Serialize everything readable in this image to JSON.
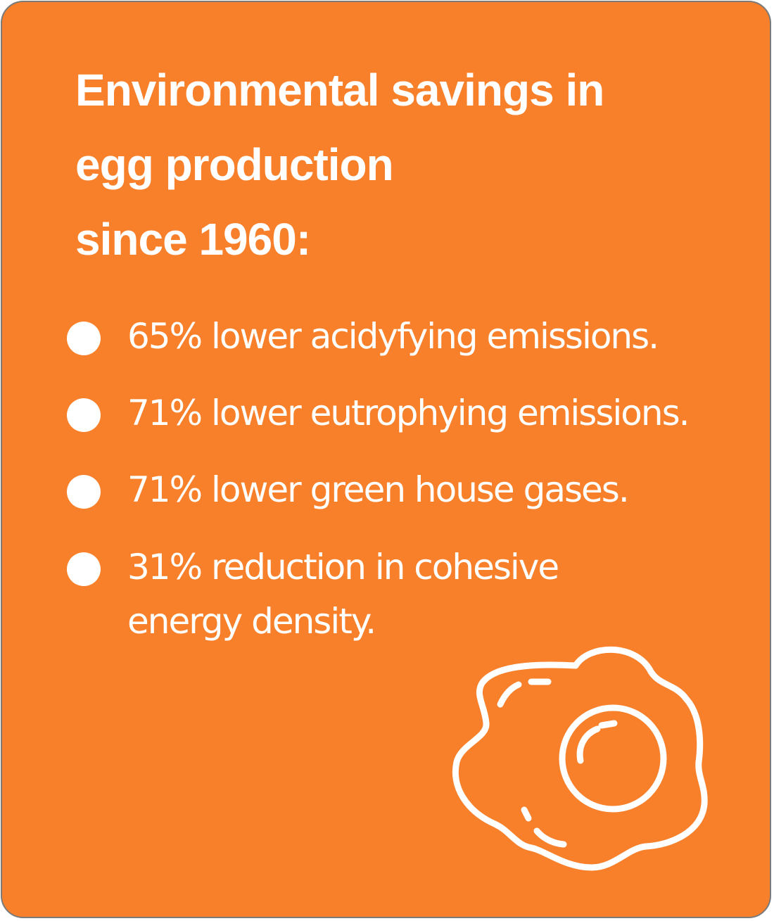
{
  "title": {
    "line1": "Environmental savings in",
    "line2": "egg production",
    "line3": "since 1960:"
  },
  "items": [
    {
      "text": "65% lower acidyfying emissions."
    },
    {
      "text": "71% lower eutrophying emissions."
    },
    {
      "text": "71% lower green house gases."
    },
    {
      "text_line1": "31% reduction in cohesive",
      "text_line2": "energy density."
    }
  ],
  "icon": "fried-egg-icon",
  "colors": {
    "background": "#f8802a",
    "text": "#ffffff",
    "border": "#7a7a7a"
  }
}
